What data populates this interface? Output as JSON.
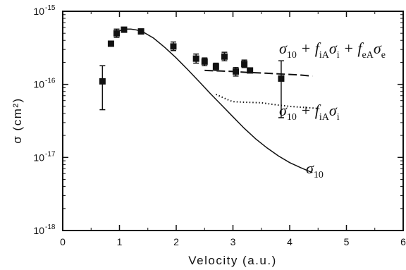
{
  "chart_data": {
    "type": "scatter",
    "xlabel": "Velocity  (a.u.)",
    "ylabel": "σ (cm²)",
    "xlim": [
      0,
      6
    ],
    "ylim": [
      1e-18,
      1e-15
    ],
    "yscale": "log",
    "grid": false,
    "x_ticks": [
      "0",
      "1",
      "2",
      "3",
      "4",
      "5",
      "6"
    ],
    "y_ticks": [
      {
        "base": "10",
        "exp": "-15"
      },
      {
        "base": "10",
        "exp": "-16"
      },
      {
        "base": "10",
        "exp": "-17"
      },
      {
        "base": "10",
        "exp": "-18"
      }
    ],
    "series": [
      {
        "style": "markers-with-error-bars",
        "points": [
          {
            "x": 0.7,
            "y": 1.1e-16,
            "ylo": 4.5e-17,
            "yhi": 1.8e-16
          },
          {
            "x": 0.85,
            "y": 3.6e-16
          },
          {
            "x": 0.95,
            "y": 5e-16,
            "ylo": 4.4e-16,
            "yhi": 5.7e-16
          },
          {
            "x": 1.08,
            "y": 5.6e-16,
            "ylo": 5.3e-16,
            "yhi": 6e-16
          },
          {
            "x": 1.38,
            "y": 5.3e-16,
            "ylo": 5e-16,
            "yhi": 5.6e-16
          },
          {
            "x": 1.95,
            "y": 3.3e-16,
            "ylo": 2.9e-16,
            "yhi": 3.8e-16
          },
          {
            "x": 2.35,
            "y": 2.25e-16,
            "ylo": 1.95e-16,
            "yhi": 2.6e-16
          },
          {
            "x": 2.5,
            "y": 2.05e-16,
            "ylo": 1.8e-16,
            "yhi": 2.3e-16
          },
          {
            "x": 2.7,
            "y": 1.75e-16,
            "ylo": 1.55e-16,
            "yhi": 1.95e-16
          },
          {
            "x": 2.85,
            "y": 2.4e-16,
            "ylo": 2.1e-16,
            "yhi": 2.75e-16
          },
          {
            "x": 3.05,
            "y": 1.5e-16,
            "ylo": 1.3e-16,
            "yhi": 1.7e-16
          },
          {
            "x": 3.2,
            "y": 1.9e-16,
            "ylo": 1.7e-16,
            "yhi": 2.15e-16
          },
          {
            "x": 3.3,
            "y": 1.55e-16
          },
          {
            "x": 3.85,
            "y": 1.2e-16,
            "ylo": 3.5e-17,
            "yhi": 2.1e-16
          }
        ]
      },
      {
        "label_main": "σ",
        "label_sub": "10",
        "style": "solid",
        "x": [
          0.95,
          1.0,
          1.1,
          1.2,
          1.3,
          1.4,
          1.6,
          1.8,
          2.0,
          2.2,
          2.4,
          2.6,
          2.8,
          3.0,
          3.2,
          3.4,
          3.6,
          3.8,
          4.0,
          4.2,
          4.4
        ],
        "y": [
          5e-16,
          5.4e-16,
          5.7e-16,
          5.7e-16,
          5.55e-16,
          5.3e-16,
          4.3e-16,
          3.2e-16,
          2.3e-16,
          1.6e-16,
          1.1e-16,
          7.5e-17,
          5.2e-17,
          3.6e-17,
          2.5e-17,
          1.8e-17,
          1.35e-17,
          1.05e-17,
          8.5e-18,
          7.2e-18,
          6.2e-18
        ]
      },
      {
        "label_parts": [
          "σ",
          "10",
          " + f",
          "iA",
          "σ",
          "i"
        ],
        "style": "dotted",
        "x": [
          2.7,
          2.9,
          3.0,
          3.2,
          3.5,
          3.8,
          4.0,
          4.3,
          4.5
        ],
        "y": [
          7.3e-17,
          6.2e-17,
          5.8e-17,
          5.7e-17,
          5.6e-17,
          5.2e-17,
          5e-17,
          4.8e-17,
          4.7e-17
        ]
      },
      {
        "label_parts": [
          "σ",
          "10",
          " + f",
          "iA",
          "σ",
          "i",
          " + f",
          "eA",
          "σ",
          "e"
        ],
        "style": "dashed",
        "x": [
          2.5,
          2.8,
          3.0,
          3.3,
          3.6,
          3.9,
          4.2,
          4.4
        ],
        "y": [
          1.55e-16,
          1.52e-16,
          1.5e-16,
          1.45e-16,
          1.42e-16,
          1.38e-16,
          1.34e-16,
          1.3e-16
        ]
      }
    ]
  }
}
